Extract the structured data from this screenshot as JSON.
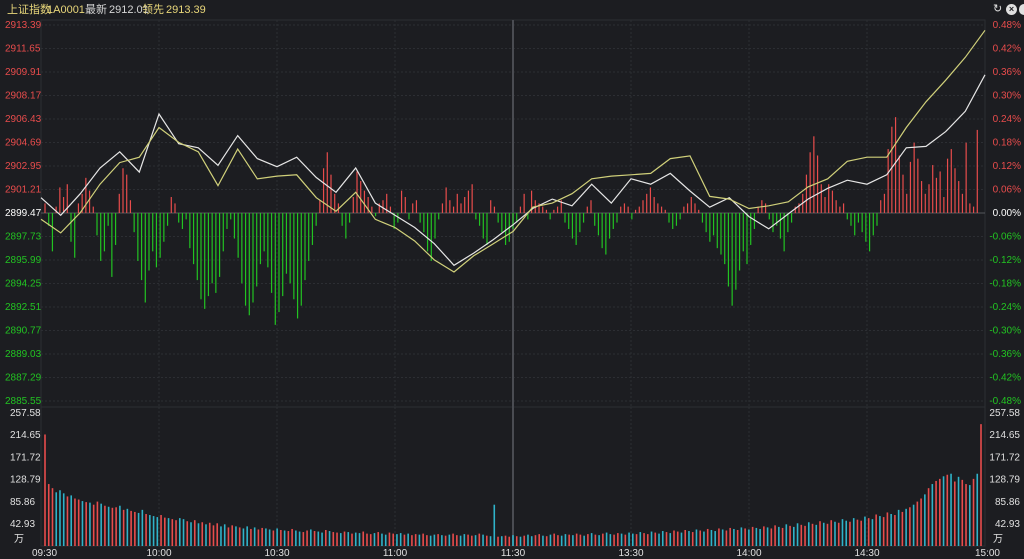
{
  "header": {
    "index_name": "上证指数",
    "code": "1A0001",
    "latest_label": "最新",
    "latest_value": "2912.01",
    "lead_label": "领先",
    "lead_value": "2913.39"
  },
  "colors": {
    "up": "#e84c4c",
    "down": "#22c322",
    "price_line": "#e6e6e6",
    "lead_line": "#d0d07a",
    "volume_down": "#2fb3c9",
    "grid": "#2c2e33"
  },
  "chart_data": [
    {
      "type": "line",
      "name": "price",
      "y_ticks": [
        "2913.39",
        "2911.65",
        "2909.91",
        "2908.17",
        "2906.43",
        "2904.69",
        "2902.95",
        "2901.21",
        "2899.47",
        "2897.73",
        "2895.99",
        "2894.25",
        "2892.51",
        "2890.77",
        "2889.03",
        "2887.29",
        "2885.55"
      ],
      "pct_ticks": [
        "0.48%",
        "0.42%",
        "0.36%",
        "0.30%",
        "0.24%",
        "0.18%",
        "0.12%",
        "0.06%",
        "0.00%",
        "-0.06%",
        "-0.12%",
        "-0.18%",
        "-0.24%",
        "-0.30%",
        "-0.36%",
        "-0.42%",
        "-0.48%"
      ],
      "ylim": [
        2885.55,
        2913.39
      ],
      "pre_close": 2899.47,
      "x_ticks": [
        "09:30",
        "10:00",
        "10:30",
        "11:00",
        "11:30",
        "13:30",
        "14:00",
        "14:30",
        "15:00"
      ],
      "series": [
        {
          "key": "price",
          "points": [
            [
              0,
              2900.6
            ],
            [
              5,
              2899.3
            ],
            [
              10,
              2900.9
            ],
            [
              15,
              2902.8
            ],
            [
              20,
              2904.0
            ],
            [
              25,
              2902.5
            ],
            [
              30,
              2906.8
            ],
            [
              35,
              2904.6
            ],
            [
              40,
              2904.3
            ],
            [
              45,
              2903.0
            ],
            [
              50,
              2905.2
            ],
            [
              55,
              2903.5
            ],
            [
              60,
              2902.9
            ],
            [
              65,
              2903.6
            ],
            [
              70,
              2902.1
            ],
            [
              75,
              2901.0
            ],
            [
              80,
              2902.8
            ],
            [
              85,
              2900.2
            ],
            [
              90,
              2899.3
            ],
            [
              95,
              2898.4
            ],
            [
              100,
              2897.2
            ],
            [
              105,
              2895.6
            ],
            [
              110,
              2896.5
            ],
            [
              115,
              2897.5
            ],
            [
              120,
              2898.6
            ],
            [
              125,
              2899.8
            ],
            [
              130,
              2900.5
            ],
            [
              135,
              2900.0
            ],
            [
              140,
              2901.6
            ],
            [
              145,
              2900.2
            ],
            [
              150,
              2902.0
            ],
            [
              155,
              2901.6
            ],
            [
              160,
              2902.4
            ],
            [
              165,
              2901.1
            ],
            [
              170,
              2899.9
            ],
            [
              175,
              2900.6
            ],
            [
              180,
              2899.2
            ],
            [
              185,
              2898.3
            ],
            [
              190,
              2899.4
            ],
            [
              195,
              2900.5
            ],
            [
              200,
              2901.3
            ],
            [
              205,
              2901.9
            ],
            [
              210,
              2901.6
            ],
            [
              215,
              2902.3
            ],
            [
              220,
              2904.3
            ],
            [
              225,
              2904.4
            ],
            [
              230,
              2905.5
            ],
            [
              235,
              2907.0
            ],
            [
              240,
              2909.7
            ]
          ]
        },
        {
          "key": "lead",
          "points": [
            [
              0,
              2899.0
            ],
            [
              5,
              2898.0
            ],
            [
              10,
              2899.5
            ],
            [
              15,
              2901.6
            ],
            [
              20,
              2903.2
            ],
            [
              25,
              2903.6
            ],
            [
              30,
              2905.8
            ],
            [
              35,
              2904.7
            ],
            [
              40,
              2904.0
            ],
            [
              45,
              2901.5
            ],
            [
              50,
              2904.2
            ],
            [
              55,
              2902.0
            ],
            [
              60,
              2902.2
            ],
            [
              65,
              2902.3
            ],
            [
              70,
              2900.6
            ],
            [
              75,
              2899.6
            ],
            [
              80,
              2901.0
            ],
            [
              85,
              2899.0
            ],
            [
              90,
              2898.4
            ],
            [
              95,
              2897.4
            ],
            [
              100,
              2896.0
            ],
            [
              105,
              2895.1
            ],
            [
              110,
              2896.3
            ],
            [
              115,
              2897.2
            ],
            [
              120,
              2898.1
            ],
            [
              125,
              2899.9
            ],
            [
              130,
              2900.2
            ],
            [
              135,
              2900.9
            ],
            [
              140,
              2902.0
            ],
            [
              145,
              2902.2
            ],
            [
              150,
              2902.3
            ],
            [
              155,
              2902.4
            ],
            [
              160,
              2903.5
            ],
            [
              165,
              2903.7
            ],
            [
              170,
              2900.7
            ],
            [
              175,
              2900.5
            ],
            [
              180,
              2899.8
            ],
            [
              185,
              2900.0
            ],
            [
              190,
              2900.3
            ],
            [
              195,
              2901.4
            ],
            [
              200,
              2902.0
            ],
            [
              205,
              2903.3
            ],
            [
              210,
              2903.6
            ],
            [
              215,
              2903.6
            ],
            [
              220,
              2905.8
            ],
            [
              225,
              2907.7
            ],
            [
              230,
              2909.3
            ],
            [
              235,
              2911.0
            ],
            [
              240,
              2913.0
            ]
          ]
        }
      ],
      "strength_bars": [
        0.3,
        -0.4,
        -1.2,
        0.2,
        0.8,
        0.5,
        0.9,
        -0.9,
        -1.4,
        0.3,
        0.6,
        1.1,
        0.7,
        0.2,
        -0.7,
        -1.5,
        -1.2,
        -0.4,
        -2.0,
        -1.0,
        0.6,
        1.4,
        1.2,
        0.4,
        -0.6,
        -1.5,
        -2.1,
        -2.8,
        -1.8,
        -1.2,
        -1.7,
        -1.4,
        -0.9,
        -0.4,
        0.5,
        0.3,
        -0.3,
        -0.5,
        -0.2,
        -1.1,
        -1.6,
        -2.1,
        -2.7,
        -3.0,
        -2.6,
        -2.2,
        -2.5,
        -2.0,
        -1.2,
        -0.5,
        -0.2,
        -0.8,
        -1.4,
        -2.2,
        -2.9,
        -3.2,
        -2.8,
        -2.3,
        -1.6,
        -1.2,
        -1.7,
        -2.5,
        -3.5,
        -3.1,
        -2.6,
        -1.9,
        -2.2,
        -2.7,
        -3.3,
        -2.9,
        -2.1,
        -1.5,
        -1.0,
        -0.4,
        0.4,
        1.4,
        1.9,
        1.2,
        0.6,
        0.3,
        -0.4,
        -0.8,
        -0.3,
        0.5,
        1.3,
        1.0,
        0.7,
        0.5,
        0.2,
        -0.1,
        0.3,
        0.4,
        0.6,
        0.2,
        -0.5,
        -0.3,
        0.7,
        0.5,
        -0.2,
        0.3,
        0.4,
        -0.3,
        -0.6,
        -1.2,
        -1.5,
        -0.8,
        -0.2,
        0.3,
        0.8,
        0.4,
        0.2,
        0.6,
        0.3,
        0.5,
        0.7,
        0.9,
        -0.2,
        -0.4,
        -0.8,
        -1.0,
        0.4,
        0.2,
        -0.3,
        -0.6,
        -1.0,
        -0.9,
        -0.5,
        -0.3,
        0.2,
        0.6,
        -0.2,
        0.7,
        0.4,
        0.3,
        0.2,
        0.1,
        -0.2,
        0.1,
        0.2,
        0.4,
        -0.3,
        -0.5,
        -0.8,
        -1.0,
        -0.6,
        -0.3,
        0.2,
        0.4,
        -0.4,
        -0.7,
        -1.1,
        -1.3,
        -0.8,
        -0.5,
        -0.3,
        0.2,
        0.3,
        0.2,
        -0.2,
        0.1,
        0.2,
        0.4,
        0.6,
        0.8,
        0.5,
        0.3,
        0.2,
        0.1,
        -0.3,
        -0.5,
        -0.4,
        -0.2,
        0.2,
        0.3,
        0.5,
        0.3,
        0.1,
        -0.3,
        -0.6,
        -0.9,
        -0.7,
        -1.1,
        -1.3,
        -1.6,
        -2.3,
        -2.9,
        -2.4,
        -1.8,
        -1.2,
        -1.6,
        -1.0,
        -0.5,
        0.2,
        0.4,
        0.3,
        -0.2,
        -0.6,
        -0.4,
        -0.8,
        -1.2,
        -0.6,
        -0.3,
        0.2,
        0.3,
        0.6,
        1.2,
        1.9,
        2.4,
        1.8,
        0.9,
        0.5,
        0.9,
        0.7,
        0.4,
        0.2,
        0.3,
        -0.2,
        -0.4,
        -0.7,
        -0.3,
        -0.6,
        -0.9,
        -1.2,
        -0.7,
        -0.4,
        0.4,
        0.6,
        2.0,
        2.7,
        3.0,
        1.8,
        1.2,
        0.6,
        1.6,
        2.2,
        1.7,
        1.0,
        0.6,
        0.9,
        1.5,
        1.1,
        1.3,
        0.5,
        1.7,
        2.0,
        1.4,
        1.0,
        0.6,
        2.2,
        0.3,
        0.2,
        2.6
      ],
      "strength_scale_max": 5.0
    },
    {
      "type": "bar",
      "name": "volume",
      "unit": "万",
      "y_ticks": [
        "257.58",
        "214.65",
        "171.72",
        "128.79",
        "85.86",
        "42.93"
      ],
      "ylim": [
        0,
        257.58
      ],
      "up_color_series": "red",
      "down_color_series": "cyan",
      "values": [
        216,
        120,
        112,
        104,
        108,
        102,
        96,
        98,
        92,
        90,
        87,
        85,
        84,
        80,
        86,
        82,
        78,
        76,
        74,
        75,
        78,
        70,
        72,
        68,
        66,
        64,
        70,
        62,
        60,
        58,
        56,
        60,
        55,
        54,
        52,
        50,
        54,
        52,
        48,
        46,
        50,
        44,
        46,
        42,
        45,
        40,
        44,
        38,
        42,
        36,
        40,
        38,
        36,
        34,
        38,
        33,
        36,
        32,
        35,
        34,
        32,
        30,
        34,
        31,
        30,
        29,
        33,
        30,
        28,
        27,
        30,
        32,
        29,
        28,
        26,
        31,
        29,
        27,
        26,
        25,
        28,
        27,
        24,
        26,
        25,
        28,
        24,
        23,
        25,
        27,
        24,
        22,
        26,
        24,
        23,
        25,
        22,
        24,
        21,
        23,
        22,
        24,
        21,
        20,
        22,
        23,
        21,
        20,
        22,
        24,
        21,
        20,
        23,
        22,
        20,
        21,
        24,
        22,
        20,
        19,
        80,
        18,
        19,
        20,
        18,
        21,
        19,
        18,
        20,
        22,
        19,
        21,
        23,
        20,
        19,
        22,
        24,
        21,
        20,
        23,
        22,
        21,
        24,
        22,
        20,
        23,
        25,
        22,
        21,
        24,
        26,
        23,
        22,
        25,
        24,
        22,
        26,
        24,
        23,
        27,
        25,
        23,
        28,
        26,
        24,
        29,
        27,
        25,
        30,
        28,
        26,
        31,
        29,
        27,
        32,
        30,
        28,
        33,
        31,
        29,
        34,
        32,
        30,
        35,
        33,
        31,
        36,
        34,
        32,
        37,
        35,
        33,
        38,
        36,
        34,
        40,
        37,
        35,
        42,
        39,
        37,
        44,
        41,
        39,
        46,
        43,
        41,
        48,
        45,
        43,
        50,
        47,
        45,
        52,
        49,
        47,
        54,
        51,
        49,
        57,
        54,
        52,
        61,
        58,
        56,
        65,
        62,
        60,
        70,
        66,
        72,
        75,
        80,
        86,
        92,
        100,
        112,
        120,
        126,
        130,
        135,
        138,
        140,
        125,
        134,
        128,
        120,
        118,
        130,
        140,
        236
      ],
      "dirs": "111000101101011010110101100100011011001010101110011010010110010101100110100101101010011101001100101101100101011001101010010110101001101011001011010101001101001011010010110101010100101101010100101101010011010101101001011010101101010101101011010101101010110111011011101111"
    }
  ]
}
